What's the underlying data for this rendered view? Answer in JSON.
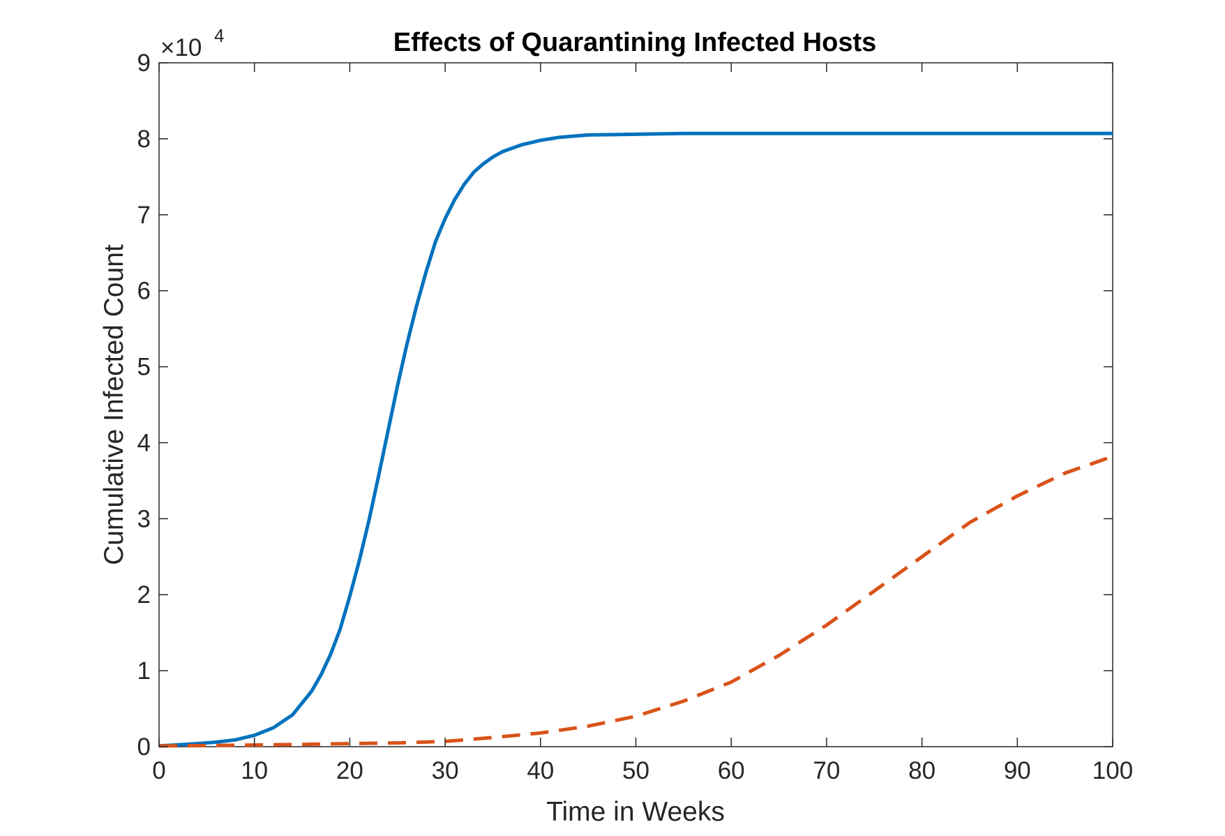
{
  "chart_data": {
    "type": "line",
    "title": "Effects of Quarantining Infected Hosts",
    "xlabel": "Time in Weeks",
    "ylabel": "Cumulative Infected Count",
    "xlim": [
      0,
      100
    ],
    "ylim": [
      0,
      90000
    ],
    "x_ticks": [
      0,
      10,
      20,
      30,
      40,
      50,
      60,
      70,
      80,
      90,
      100
    ],
    "x_tick_labels": [
      "0",
      "10",
      "20",
      "30",
      "40",
      "50",
      "60",
      "70",
      "80",
      "90",
      "100"
    ],
    "y_ticks": [
      0,
      10000,
      20000,
      30000,
      40000,
      50000,
      60000,
      70000,
      80000,
      90000
    ],
    "y_tick_labels": [
      "0",
      "1",
      "2",
      "3",
      "4",
      "5",
      "6",
      "7",
      "8",
      "9"
    ],
    "y_exponent_label": {
      "base": "×10",
      "exponent": "4"
    },
    "grid": false,
    "legend": "none",
    "series": [
      {
        "color": "#0072BD",
        "line_style": "solid",
        "x": [
          0,
          2,
          4,
          6,
          8,
          10,
          12,
          14,
          16,
          17,
          18,
          19,
          20,
          21,
          22,
          23,
          24,
          25,
          26,
          27,
          28,
          29,
          30,
          31,
          32,
          33,
          34,
          35,
          36,
          38,
          40,
          42,
          45,
          50,
          55,
          60,
          70,
          80,
          90,
          100
        ],
        "y": [
          100,
          250,
          400,
          600,
          900,
          1500,
          2500,
          4200,
          7300,
          9500,
          12200,
          15500,
          19800,
          24500,
          29700,
          35500,
          41500,
          47500,
          53000,
          58000,
          62500,
          66500,
          69500,
          72000,
          74000,
          75600,
          76700,
          77600,
          78300,
          79200,
          79800,
          80200,
          80500,
          80600,
          80700,
          80700,
          80700,
          80700,
          80700,
          80700
        ]
      },
      {
        "color": "#D95319",
        "line_style": "dashed",
        "x": [
          0,
          5,
          10,
          15,
          20,
          25,
          30,
          35,
          40,
          45,
          50,
          55,
          60,
          65,
          70,
          75,
          80,
          85,
          90,
          95,
          100
        ],
        "y": [
          100,
          150,
          220,
          300,
          400,
          500,
          700,
          1200,
          1800,
          2700,
          4000,
          6000,
          8500,
          12000,
          16000,
          20500,
          25000,
          29500,
          33000,
          36000,
          38200
        ]
      }
    ]
  }
}
